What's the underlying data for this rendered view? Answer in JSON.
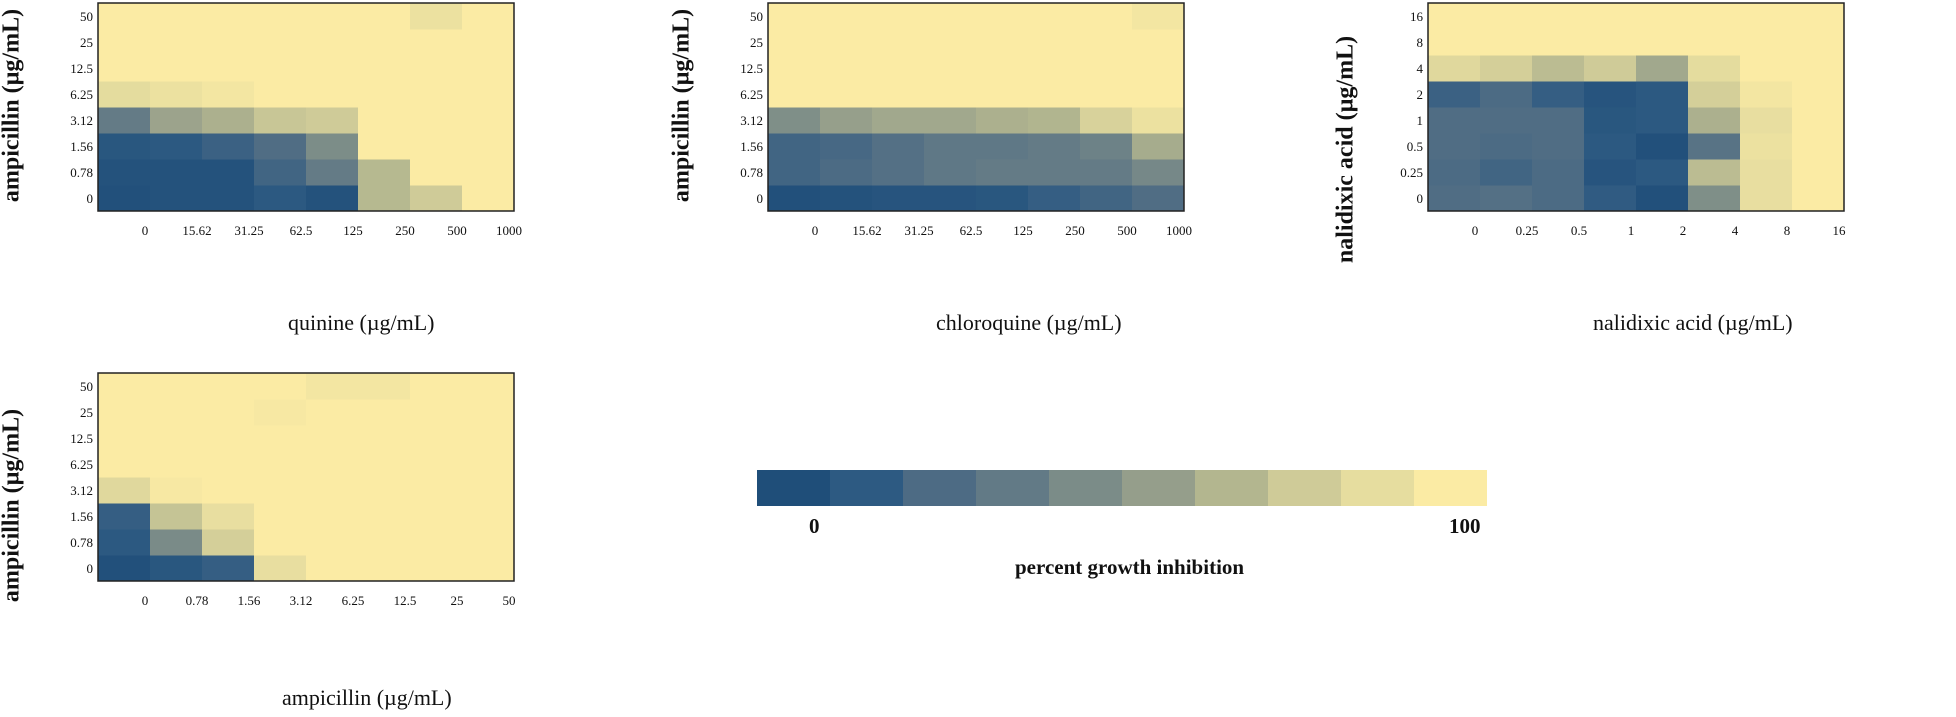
{
  "colorscale": {
    "colors": [
      "#1f4e79",
      "#2d5a82",
      "#4d6b84",
      "#627a86",
      "#7b8c88",
      "#959e8b",
      "#b3b68f",
      "#cfcb98",
      "#e6dd9f",
      "#fbeba4"
    ],
    "min_label": "0",
    "max_label": "100",
    "title": "percent growth inhibition"
  },
  "chart_data": [
    {
      "type": "heatmap",
      "x": [
        "0",
        "15.62",
        "31.25",
        "62.5",
        "125",
        "250",
        "500",
        "1000"
      ],
      "y": [
        "0",
        "0.78",
        "1.56",
        "3.12",
        "6.25",
        "12.5",
        "25",
        "50"
      ],
      "xlabel": "quinine (µg/mL)",
      "ylabel": "ampicillin (µg/mL)",
      "z": [
        [
          2,
          4,
          4,
          10,
          4,
          68,
          78,
          100
        ],
        [
          4,
          4,
          4,
          18,
          34,
          68,
          100,
          100
        ],
        [
          8,
          10,
          16,
          24,
          45,
          100,
          100,
          100
        ],
        [
          34,
          58,
          64,
          75,
          78,
          100,
          100,
          100
        ],
        [
          88,
          92,
          96,
          100,
          100,
          100,
          100,
          100
        ],
        [
          100,
          100,
          100,
          100,
          100,
          100,
          100,
          100
        ],
        [
          100,
          100,
          100,
          100,
          100,
          100,
          100,
          100
        ],
        [
          100,
          100,
          100,
          100,
          100,
          100,
          92,
          100
        ]
      ]
    },
    {
      "type": "heatmap",
      "x": [
        "0",
        "15.62",
        "31.25",
        "62.5",
        "125",
        "250",
        "500",
        "1000"
      ],
      "y": [
        "0",
        "0.78",
        "1.56",
        "3.12",
        "6.25",
        "12.5",
        "25",
        "50"
      ],
      "xlabel": "chloroquine (µg/mL)",
      "ylabel": "ampicillin (µg/mL)",
      "z": [
        [
          2,
          4,
          6,
          6,
          8,
          14,
          18,
          24
        ],
        [
          18,
          22,
          26,
          32,
          34,
          34,
          34,
          42
        ],
        [
          18,
          20,
          26,
          32,
          32,
          34,
          38,
          62
        ],
        [
          46,
          56,
          60,
          60,
          64,
          66,
          82,
          92
        ],
        [
          100,
          100,
          100,
          100,
          100,
          100,
          100,
          100
        ],
        [
          100,
          100,
          100,
          100,
          100,
          100,
          100,
          100
        ],
        [
          100,
          100,
          100,
          100,
          100,
          100,
          100,
          100
        ],
        [
          100,
          100,
          100,
          100,
          100,
          100,
          100,
          96
        ]
      ]
    },
    {
      "type": "heatmap",
      "x": [
        "0",
        "0.25",
        "0.5",
        "1",
        "2",
        "4",
        "8",
        "16"
      ],
      "y": [
        "0",
        "0.25",
        "0.5",
        "1",
        "2",
        "4",
        "8",
        "16"
      ],
      "xlabel": "nalidixic acid (µg/mL)",
      "ylabel": "nalidixic acid (µg/mL)",
      "z": [
        [
          24,
          26,
          22,
          12,
          2,
          46,
          90,
          100
        ],
        [
          22,
          18,
          22,
          6,
          10,
          70,
          90,
          100
        ],
        [
          24,
          22,
          24,
          10,
          2,
          28,
          92,
          100
        ],
        [
          24,
          24,
          24,
          8,
          10,
          64,
          90,
          100
        ],
        [
          16,
          22,
          14,
          6,
          10,
          80,
          96,
          100
        ],
        [
          86,
          80,
          70,
          78,
          60,
          88,
          100,
          100
        ],
        [
          100,
          100,
          100,
          100,
          100,
          100,
          100,
          100
        ],
        [
          100,
          100,
          100,
          100,
          100,
          100,
          100,
          100
        ]
      ]
    },
    {
      "type": "heatmap",
      "x": [
        "0",
        "0.78",
        "1.56",
        "3.12",
        "6.25",
        "12.5",
        "25",
        "50"
      ],
      "y": [
        "0",
        "0.78",
        "1.56",
        "3.12",
        "6.25",
        "12.5",
        "25",
        "50"
      ],
      "xlabel": "ampicillin (µg/mL)",
      "ylabel": "ampicillin (µg/mL)",
      "z": [
        [
          2,
          8,
          14,
          90,
          100,
          100,
          100,
          100
        ],
        [
          10,
          44,
          80,
          100,
          100,
          100,
          100,
          100
        ],
        [
          14,
          74,
          90,
          100,
          100,
          100,
          100,
          100
        ],
        [
          86,
          98,
          100,
          100,
          100,
          100,
          100,
          100
        ],
        [
          100,
          100,
          100,
          100,
          100,
          100,
          100,
          100
        ],
        [
          100,
          100,
          100,
          100,
          100,
          100,
          100,
          100
        ],
        [
          100,
          100,
          100,
          98,
          100,
          100,
          100,
          100
        ],
        [
          100,
          100,
          100,
          100,
          96,
          96,
          100,
          100
        ]
      ]
    }
  ]
}
